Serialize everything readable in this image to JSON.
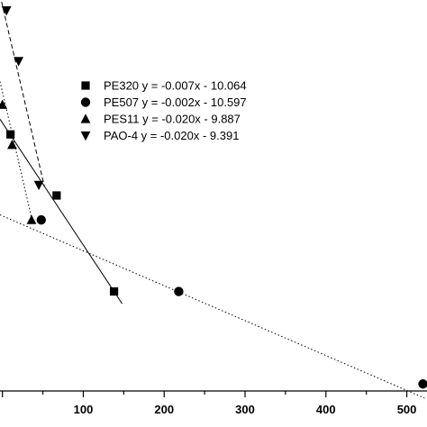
{
  "chart_data": {
    "type": "scatter",
    "title": "",
    "xlabel": "",
    "ylabel": "",
    "xlim": [
      -3,
      525
    ],
    "ylim": [
      -11.6,
      -9.36
    ],
    "x_ticks": [
      0,
      100,
      200,
      300,
      400,
      500
    ],
    "x_tick_labels": [
      "",
      "100",
      "200",
      "300",
      "400",
      "500"
    ],
    "grid": false,
    "legend_position": "top-center",
    "series": [
      {
        "name": "PE320 y = -0.007x - 10.064",
        "marker": "square",
        "line": "solid",
        "x": [
          10,
          67,
          138
        ],
        "y": [
          -10.13,
          -10.48,
          -11.03
        ],
        "fit": {
          "slope": -0.007,
          "intercept": -10.064,
          "x_range": [
            -3,
            148
          ]
        }
      },
      {
        "name": "PE507 y = -0.002x - 10.597",
        "marker": "circle",
        "line": "dotted",
        "x": [
          48,
          218,
          520
        ],
        "y": [
          -10.62,
          -11.03,
          -11.56
        ],
        "fit": {
          "slope": -0.002,
          "intercept": -10.597,
          "x_range": [
            -3,
            522
          ]
        }
      },
      {
        "name": "PES11 y = -0.020x - 9.887",
        "marker": "triangle-up",
        "line": "dotted",
        "x": [
          0,
          12,
          36
        ],
        "y": [
          -9.96,
          -10.19,
          -10.62
        ],
        "fit": {
          "slope": -0.02,
          "intercept": -9.887,
          "x_range": [
            -3,
            38
          ]
        }
      },
      {
        "name": "PAO-4 y = -0.020x - 9.391",
        "marker": "triangle-down",
        "line": "dashed",
        "x": [
          5,
          20,
          45
        ],
        "y": [
          -9.42,
          -9.71,
          -10.42
        ],
        "fit": {
          "slope": -0.02,
          "intercept": -9.391,
          "x_range": [
            -3,
            52
          ]
        }
      }
    ]
  }
}
